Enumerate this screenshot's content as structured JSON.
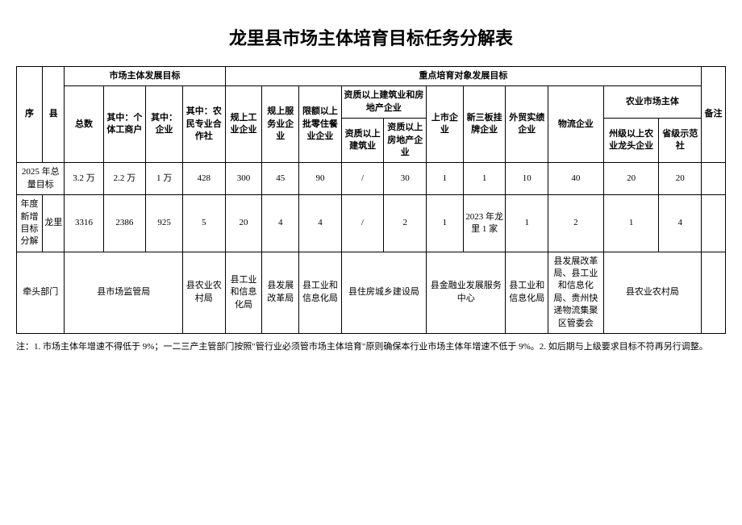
{
  "title": "龙里县市场主体培育目标任务分解表",
  "header": {
    "seq": "序",
    "county": "县",
    "market_goal": "市场主体发展目标",
    "key_goal": "重点培育对象发展目标",
    "remark": "备注",
    "total": "总数",
    "individual": "其中：个体工商户",
    "enterprise": "其中：企业",
    "farmer_coop": "其中：农民专业合作社",
    "scale_industry": "规上工业企业",
    "scale_service": "规上服务业企业",
    "quota_retail": "限额以上批零住餐业企业",
    "qual_construction_realestate": "资质以上建筑业和房地产企业",
    "qual_construction": "资质以上建筑业",
    "qual_realestate": "资质以上房地产企业",
    "listed": "上市企业",
    "neeq": "新三板挂牌企业",
    "foreign_trade": "外贸实绩企业",
    "logistics": "物流企业",
    "agri_main": "农业市场主体",
    "agri_leader": "州级以上农业龙头企业",
    "prov_demo": "省级示范社"
  },
  "rows": {
    "total_2025": {
      "label": "2025 年总量目标",
      "total": "3.2 万",
      "individual": "2.2 万",
      "enterprise": "1 万",
      "farmer_coop": "428",
      "scale_industry": "300",
      "scale_service": "45",
      "quota_retail": "90",
      "qual_construction": "/",
      "qual_realestate": "30",
      "listed": "1",
      "neeq": "1",
      "foreign_trade": "10",
      "logistics": "40",
      "agri_leader": "20",
      "prov_demo": "20",
      "remark": ""
    },
    "annual": {
      "label": "年度新增目标分解",
      "county": "龙里",
      "total": "3316",
      "individual": "2386",
      "enterprise": "925",
      "farmer_coop": "5",
      "scale_industry": "20",
      "scale_service": "4",
      "quota_retail": "4",
      "qual_construction": "/",
      "qual_realestate": "2",
      "listed": "1",
      "neeq": "2023 年龙里 1 家",
      "foreign_trade": "1",
      "logistics": "2",
      "agri_leader": "1",
      "prov_demo": "4",
      "remark": ""
    },
    "lead_dept": {
      "label": "牵头部门",
      "market_supervision": "县市场监管局",
      "agri_bureau_1": "县农业农村局",
      "industry_info_1": "县工业和信息化局",
      "reform_bureau": "县发展改革局",
      "industry_info_2": "县工业和信息化局",
      "housing_bureau": "县住房城乡建设局",
      "finance_center": "县金融业发展服务中心",
      "industry_info_3": "县工业和信息化局",
      "multi_dept": "县发展改革局、县工业和信息化局、贵州快递物流集聚区管委会",
      "agri_bureau_2": "县农业农村局",
      "remark": ""
    }
  },
  "footnote": "注：1. 市场主体年增速不得低于 9%；一二三产主管部门按照\"管行业必须管市场主体培育\"原则确保本行业市场主体年增速不低于 9%。2. 如后期与上级要求目标不符再另行调整。"
}
